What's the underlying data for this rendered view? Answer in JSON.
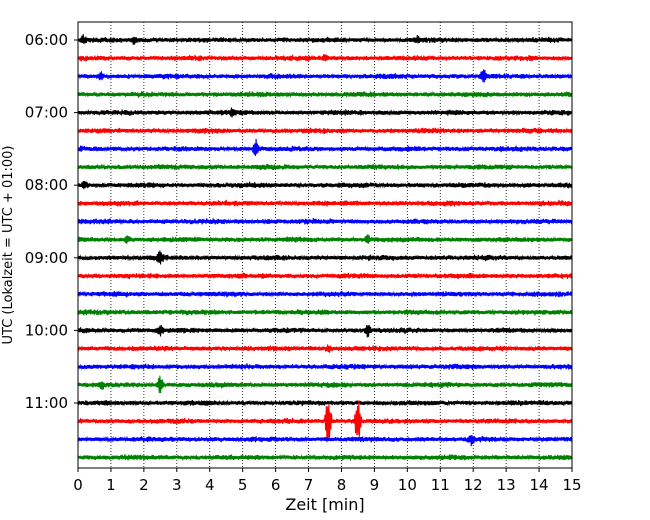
{
  "chart_data": {
    "type": "line",
    "title": "",
    "xlabel": "Zeit  [min]",
    "ylabel": "UTC (Lokalzeit = UTC + 01:00)",
    "xlim": [
      0,
      15
    ],
    "x_ticks": [
      0,
      1,
      2,
      3,
      4,
      5,
      6,
      7,
      8,
      9,
      10,
      11,
      12,
      13,
      14,
      15
    ],
    "y_tick_labels": [
      "06:00",
      "07:00",
      "08:00",
      "09:00",
      "10:00",
      "11:00"
    ],
    "row_interval_minutes": 15,
    "rows": [
      {
        "start": "06:00",
        "color": "#000000"
      },
      {
        "start": "06:15",
        "color": "#ff0000"
      },
      {
        "start": "06:30",
        "color": "#0000ff"
      },
      {
        "start": "06:45",
        "color": "#008000"
      },
      {
        "start": "07:00",
        "color": "#000000"
      },
      {
        "start": "07:15",
        "color": "#ff0000"
      },
      {
        "start": "07:30",
        "color": "#0000ff"
      },
      {
        "start": "07:45",
        "color": "#008000"
      },
      {
        "start": "08:00",
        "color": "#000000"
      },
      {
        "start": "08:15",
        "color": "#ff0000"
      },
      {
        "start": "08:30",
        "color": "#0000ff"
      },
      {
        "start": "08:45",
        "color": "#008000"
      },
      {
        "start": "09:00",
        "color": "#000000"
      },
      {
        "start": "09:15",
        "color": "#ff0000"
      },
      {
        "start": "09:30",
        "color": "#0000ff"
      },
      {
        "start": "09:45",
        "color": "#008000"
      },
      {
        "start": "10:00",
        "color": "#000000"
      },
      {
        "start": "10:15",
        "color": "#ff0000"
      },
      {
        "start": "10:30",
        "color": "#0000ff"
      },
      {
        "start": "10:45",
        "color": "#008000"
      },
      {
        "start": "11:00",
        "color": "#000000"
      },
      {
        "start": "11:15",
        "color": "#ff0000"
      },
      {
        "start": "11:30",
        "color": "#0000ff"
      },
      {
        "start": "11:45",
        "color": "#008000"
      }
    ],
    "grid": "vertical dotted",
    "legend": "none"
  }
}
